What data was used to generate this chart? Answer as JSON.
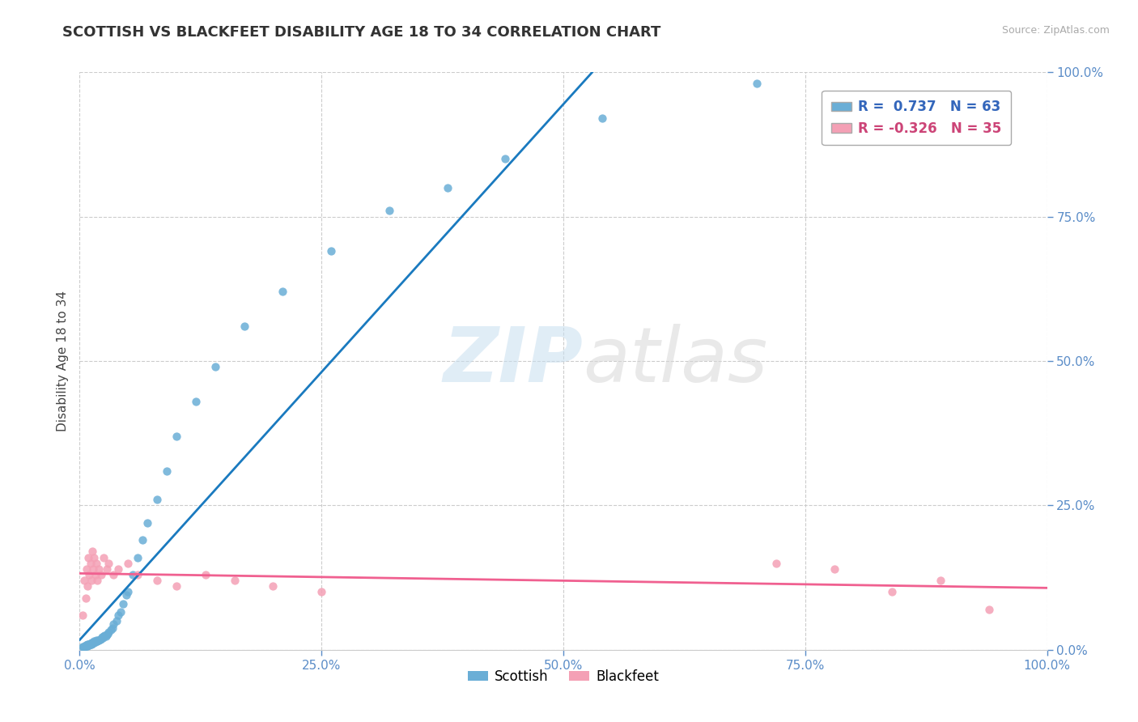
{
  "title": "SCOTTISH VS BLACKFEET DISABILITY AGE 18 TO 34 CORRELATION CHART",
  "source_text": "Source: ZipAtlas.com",
  "ylabel": "Disability Age 18 to 34",
  "xlim": [
    0.0,
    1.0
  ],
  "ylim": [
    0.0,
    1.0
  ],
  "xtick_vals": [
    0.0,
    0.25,
    0.5,
    0.75,
    1.0
  ],
  "ytick_vals": [
    0.0,
    0.25,
    0.5,
    0.75,
    1.0
  ],
  "scottish_color": "#6aaed6",
  "blackfeet_color": "#f4a0b5",
  "scottish_line_color": "#1a7abf",
  "blackfeet_line_color": "#f06090",
  "tick_color": "#5b8dc8",
  "R_scottish": 0.737,
  "N_scottish": 63,
  "R_blackfeet": -0.326,
  "N_blackfeet": 35,
  "watermark_zip": "ZIP",
  "watermark_atlas": "atlas",
  "background_color": "#ffffff",
  "title_fontsize": 13,
  "axis_label_fontsize": 11,
  "tick_fontsize": 11,
  "legend_fontsize": 12,
  "scottish_x": [
    0.003,
    0.004,
    0.005,
    0.006,
    0.006,
    0.007,
    0.007,
    0.008,
    0.008,
    0.009,
    0.009,
    0.01,
    0.01,
    0.011,
    0.011,
    0.012,
    0.012,
    0.013,
    0.013,
    0.014,
    0.015,
    0.015,
    0.016,
    0.017,
    0.018,
    0.019,
    0.02,
    0.021,
    0.022,
    0.023,
    0.024,
    0.025,
    0.026,
    0.027,
    0.028,
    0.029,
    0.03,
    0.032,
    0.034,
    0.035,
    0.038,
    0.04,
    0.042,
    0.045,
    0.048,
    0.05,
    0.055,
    0.06,
    0.065,
    0.07,
    0.08,
    0.09,
    0.1,
    0.12,
    0.14,
    0.17,
    0.21,
    0.26,
    0.32,
    0.38,
    0.44,
    0.54,
    0.7
  ],
  "scottish_y": [
    0.005,
    0.006,
    0.006,
    0.007,
    0.008,
    0.007,
    0.008,
    0.007,
    0.009,
    0.008,
    0.01,
    0.008,
    0.01,
    0.009,
    0.011,
    0.01,
    0.012,
    0.011,
    0.013,
    0.012,
    0.013,
    0.015,
    0.014,
    0.016,
    0.015,
    0.017,
    0.016,
    0.018,
    0.02,
    0.022,
    0.021,
    0.023,
    0.025,
    0.024,
    0.026,
    0.028,
    0.03,
    0.035,
    0.038,
    0.045,
    0.05,
    0.06,
    0.065,
    0.08,
    0.095,
    0.1,
    0.13,
    0.16,
    0.19,
    0.22,
    0.26,
    0.31,
    0.37,
    0.43,
    0.49,
    0.56,
    0.62,
    0.69,
    0.76,
    0.8,
    0.85,
    0.92,
    0.98
  ],
  "blackfeet_x": [
    0.003,
    0.005,
    0.006,
    0.007,
    0.008,
    0.009,
    0.01,
    0.011,
    0.012,
    0.013,
    0.014,
    0.015,
    0.016,
    0.017,
    0.018,
    0.02,
    0.022,
    0.025,
    0.028,
    0.03,
    0.035,
    0.04,
    0.05,
    0.06,
    0.08,
    0.1,
    0.13,
    0.16,
    0.2,
    0.25,
    0.72,
    0.78,
    0.84,
    0.89,
    0.94
  ],
  "blackfeet_y": [
    0.06,
    0.12,
    0.09,
    0.14,
    0.11,
    0.16,
    0.13,
    0.15,
    0.12,
    0.17,
    0.14,
    0.16,
    0.13,
    0.15,
    0.12,
    0.14,
    0.13,
    0.16,
    0.14,
    0.15,
    0.13,
    0.14,
    0.15,
    0.13,
    0.12,
    0.11,
    0.13,
    0.12,
    0.11,
    0.1,
    0.15,
    0.14,
    0.1,
    0.12,
    0.07
  ]
}
